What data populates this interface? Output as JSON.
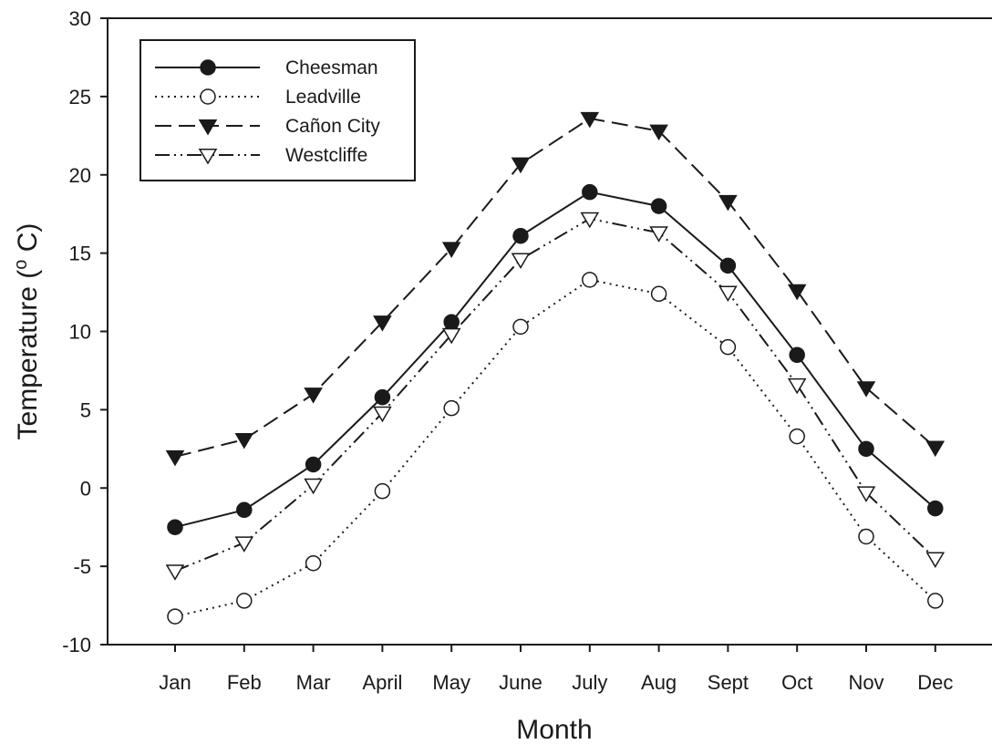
{
  "chart_data": {
    "type": "line",
    "title": "",
    "xlabel": "Month",
    "ylabel": "Temperature (° C)",
    "ylabel_parts": {
      "before": "Temperature (",
      "sup": "o",
      "after": " C)"
    },
    "ylim": [
      -10,
      30
    ],
    "yticks": [
      -10,
      -5,
      0,
      5,
      10,
      15,
      20,
      25,
      30
    ],
    "categories": [
      "Jan",
      "Feb",
      "Mar",
      "April",
      "May",
      "June",
      "July",
      "Aug",
      "Sept",
      "Oct",
      "Nov",
      "Dec"
    ],
    "grid": false,
    "legend_position": "top-left",
    "series": [
      {
        "name": "Cheesman",
        "line_style": "solid",
        "marker": "filled-circle",
        "color": "#1a1a1a",
        "values": [
          -2.5,
          -1.4,
          1.5,
          5.8,
          10.6,
          16.1,
          18.9,
          18.0,
          14.2,
          8.5,
          2.5,
          -1.3
        ]
      },
      {
        "name": "Leadville",
        "line_style": "dotted",
        "marker": "open-circle",
        "color": "#1a1a1a",
        "values": [
          -8.2,
          -7.2,
          -4.8,
          -0.2,
          5.1,
          10.3,
          13.3,
          12.4,
          9.0,
          3.3,
          -3.1,
          -7.2
        ]
      },
      {
        "name": "Cañon City",
        "line_style": "dashed",
        "marker": "filled-triangle-down",
        "color": "#1a1a1a",
        "values": [
          2.0,
          3.1,
          6.0,
          10.6,
          15.3,
          20.7,
          23.6,
          22.8,
          18.3,
          12.6,
          6.4,
          2.6
        ]
      },
      {
        "name": "Westcliffe",
        "line_style": "dash-dot-dot",
        "marker": "open-triangle-down",
        "color": "#1a1a1a",
        "values": [
          -5.3,
          -3.5,
          0.2,
          4.8,
          9.8,
          14.6,
          17.2,
          16.3,
          12.5,
          6.6,
          -0.3,
          -4.5
        ]
      }
    ]
  }
}
